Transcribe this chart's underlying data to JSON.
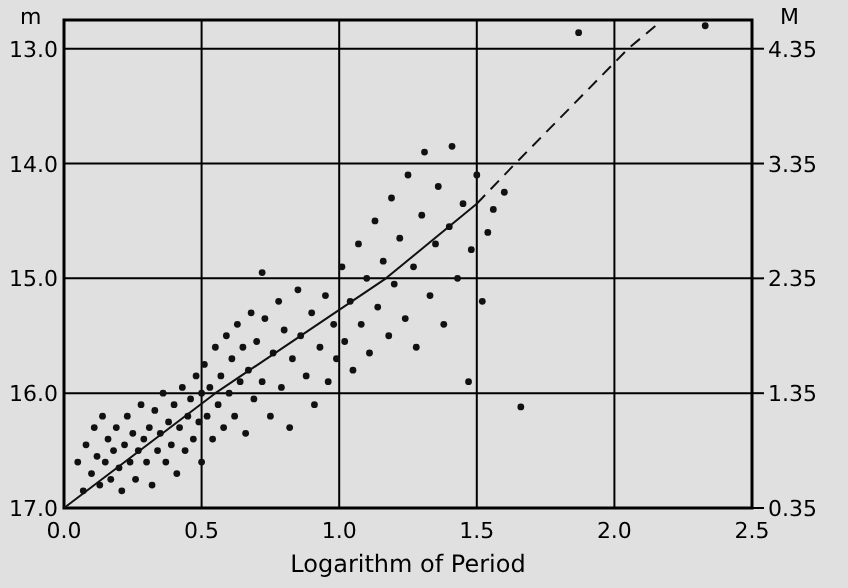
{
  "chart_data": {
    "type": "scatter",
    "xlabel": "Logarithm of Period",
    "ylabel": "m",
    "y2label": "M",
    "xlim": [
      0,
      2.5
    ],
    "ylim": [
      17.0,
      12.75
    ],
    "y2lim": [
      0.35,
      4.6
    ],
    "xticks": [
      {
        "value": 0,
        "label": "0.0"
      },
      0.5,
      {
        "value": 1,
        "label": "1.0"
      },
      1.5,
      {
        "value": 2,
        "label": "2.0"
      },
      2.5
    ],
    "yticks": [
      {
        "value": 13,
        "label": "13.0"
      },
      {
        "value": 14,
        "label": "14.0"
      },
      {
        "value": 15,
        "label": "15.0"
      },
      {
        "value": 16,
        "label": "16.0"
      },
      {
        "value": 17,
        "label": "17.0"
      }
    ],
    "y2ticks": [
      4.35,
      3.35,
      2.35,
      1.35,
      0.35
    ],
    "grid": true,
    "series": [
      {
        "marker": "circle",
        "color": "#111111",
        "x": [
          0.05,
          0.07,
          0.08,
          0.1,
          0.11,
          0.12,
          0.13,
          0.14,
          0.15,
          0.16,
          0.17,
          0.18,
          0.19,
          0.2,
          0.21,
          0.22,
          0.23,
          0.24,
          0.25,
          0.26,
          0.27,
          0.28,
          0.29,
          0.3,
          0.31,
          0.32,
          0.33,
          0.34,
          0.35,
          0.36,
          0.37,
          0.38,
          0.39,
          0.4,
          0.41,
          0.42,
          0.43,
          0.44,
          0.45,
          0.46,
          0.47,
          0.48,
          0.49,
          0.5,
          0.5,
          0.51,
          0.52,
          0.53,
          0.54,
          0.55,
          0.56,
          0.57,
          0.58,
          0.59,
          0.6,
          0.61,
          0.62,
          0.63,
          0.64,
          0.65,
          0.66,
          0.67,
          0.68,
          0.69,
          0.7,
          0.72,
          0.72,
          0.73,
          0.75,
          0.76,
          0.78,
          0.79,
          0.8,
          0.82,
          0.83,
          0.85,
          0.86,
          0.88,
          0.9,
          0.91,
          0.93,
          0.95,
          0.96,
          0.98,
          0.99,
          1.01,
          1.02,
          1.04,
          1.05,
          1.07,
          1.08,
          1.1,
          1.11,
          1.13,
          1.14,
          1.16,
          1.18,
          1.19,
          1.2,
          1.22,
          1.24,
          1.25,
          1.27,
          1.28,
          1.3,
          1.31,
          1.33,
          1.35,
          1.36,
          1.38,
          1.4,
          1.41,
          1.43,
          1.45,
          1.47,
          1.48,
          1.5,
          1.52,
          1.54,
          1.56,
          1.6,
          1.66,
          1.87,
          2.33
        ],
        "values": [
          16.6,
          16.85,
          16.45,
          16.7,
          16.3,
          16.55,
          16.8,
          16.2,
          16.6,
          16.4,
          16.75,
          16.5,
          16.3,
          16.65,
          16.85,
          16.45,
          16.2,
          16.6,
          16.35,
          16.75,
          16.5,
          16.1,
          16.4,
          16.6,
          16.3,
          16.8,
          16.15,
          16.5,
          16.35,
          16.0,
          16.6,
          16.25,
          16.45,
          16.1,
          16.7,
          16.3,
          15.95,
          16.5,
          16.2,
          16.05,
          16.4,
          15.85,
          16.25,
          16.6,
          16.0,
          15.75,
          16.2,
          15.95,
          16.4,
          15.6,
          16.1,
          15.85,
          16.3,
          15.5,
          16.0,
          15.7,
          16.2,
          15.4,
          15.9,
          15.6,
          16.35,
          15.8,
          15.3,
          16.05,
          15.55,
          14.95,
          15.9,
          15.35,
          16.2,
          15.65,
          15.2,
          15.95,
          15.45,
          16.3,
          15.7,
          15.1,
          15.5,
          15.85,
          15.3,
          16.1,
          15.6,
          15.15,
          15.9,
          15.4,
          15.7,
          14.9,
          15.55,
          15.2,
          15.8,
          14.7,
          15.4,
          15.0,
          15.65,
          14.5,
          15.25,
          14.85,
          15.5,
          14.3,
          15.05,
          14.65,
          15.35,
          14.1,
          14.9,
          15.6,
          14.45,
          13.9,
          15.15,
          14.7,
          14.2,
          15.4,
          14.55,
          13.85,
          15.0,
          14.35,
          15.9,
          14.75,
          14.1,
          15.2,
          14.6,
          14.4,
          14.25,
          16.12,
          12.86,
          12.8
        ]
      },
      {
        "type": "line",
        "color": "#111111",
        "line_style": "solid",
        "x": [
          0,
          0.55,
          1.17,
          1.5
        ],
        "values": [
          17.0,
          16.0,
          15.0,
          14.35
        ]
      },
      {
        "type": "line",
        "color": "#111111",
        "line_style": "dashed",
        "x": [
          1.5,
          1.64,
          2.05,
          2.15
        ],
        "values": [
          14.35,
          14.0,
          13.0,
          12.8
        ]
      }
    ]
  }
}
